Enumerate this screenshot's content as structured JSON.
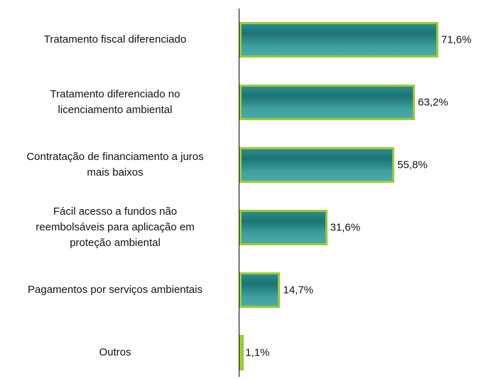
{
  "chart_data": {
    "type": "hbar",
    "categories": [
      "Tratamento fiscal diferenciado",
      "Tratamento diferenciado no\nlicenciamento ambiental",
      "Contratação de financiamento a juros\nmais baixos",
      "Fácil acesso a fundos não\nreembolsáveis para aplicação em\nproteção ambiental",
      "Pagamentos por serviços ambientais",
      "Outros"
    ],
    "values": [
      71.6,
      63.2,
      55.8,
      31.6,
      14.7,
      1.1
    ],
    "value_labels": [
      "71,6%",
      "63,2%",
      "55,8%",
      "31,6%",
      "14,7%",
      "1,1%"
    ],
    "color": "#2a8c8c",
    "edge_color": "#99cc33"
  }
}
